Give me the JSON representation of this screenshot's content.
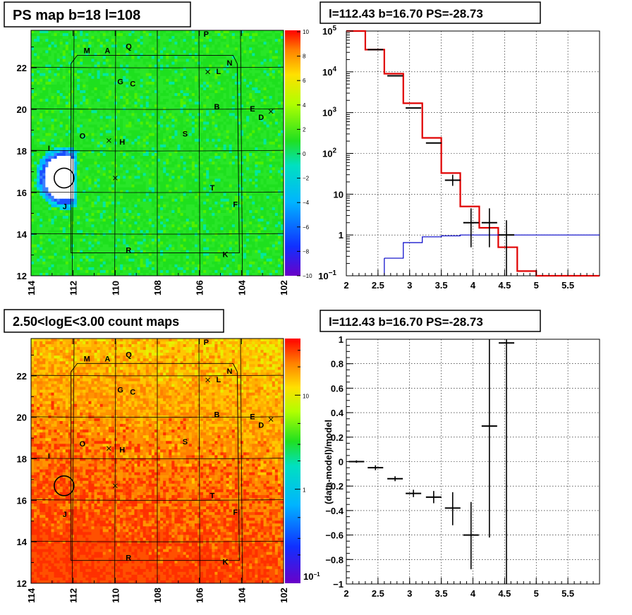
{
  "panels": {
    "tl": {
      "title": "PS map b=18 l=108",
      "x_ticks": [
        "114",
        "112",
        "110",
        "108",
        "106",
        "104",
        "102"
      ],
      "y_ticks": [
        "12",
        "14",
        "16",
        "18",
        "20",
        "22"
      ],
      "cb_ticks": [
        "10",
        "8",
        "6",
        "4",
        "2",
        "0",
        "−2",
        "−4",
        "−6",
        "−8",
        "−10"
      ]
    },
    "tr": {
      "title": "l=112.43 b=16.70 PS=-28.73",
      "x_ticks": [
        "2",
        "2.5",
        "3",
        "3.5",
        "4",
        "4.5",
        "5",
        "5.5"
      ]
    },
    "bl": {
      "title": "2.50<logE<3.00 count maps",
      "x_ticks": [
        "114",
        "112",
        "110",
        "108",
        "106",
        "104",
        "102"
      ],
      "y_ticks": [
        "12",
        "14",
        "16",
        "18",
        "20",
        "22"
      ],
      "cb_ticks": [
        "10",
        "1"
      ],
      "cb_small": "10",
      "cb_small_exp": "−1"
    },
    "br": {
      "title": "l=112.43 b=16.70 PS=-28.73",
      "ylabel": "(data-model)/model",
      "x_ticks": [
        "2",
        "2.5",
        "3",
        "3.5",
        "4",
        "4.5",
        "5",
        "5.5"
      ],
      "y_ticks": [
        "−1",
        "−0.8",
        "−0.6",
        "−0.4",
        "−0.2",
        "0",
        "0.2",
        "0.4",
        "0.6",
        "0.8",
        "1"
      ]
    }
  },
  "sky_labels": [
    {
      "t": "P",
      "l": 105.8,
      "b": 23.5
    },
    {
      "t": "M",
      "l": 111.5,
      "b": 22.7
    },
    {
      "t": "A",
      "l": 110.5,
      "b": 22.7
    },
    {
      "t": "Q",
      "l": 109.5,
      "b": 22.9
    },
    {
      "t": "L",
      "l": 105.2,
      "b": 21.7
    },
    {
      "t": "N",
      "l": 104.7,
      "b": 22.1
    },
    {
      "t": "G",
      "l": 109.9,
      "b": 21.2
    },
    {
      "t": "C",
      "l": 109.3,
      "b": 21.1
    },
    {
      "t": "B",
      "l": 105.3,
      "b": 20.0
    },
    {
      "t": "E",
      "l": 103.6,
      "b": 19.9
    },
    {
      "t": "D",
      "l": 103.2,
      "b": 19.5
    },
    {
      "t": "O",
      "l": 111.7,
      "b": 18.6
    },
    {
      "t": "H",
      "l": 109.8,
      "b": 18.3
    },
    {
      "t": "S",
      "l": 106.8,
      "b": 18.7
    },
    {
      "t": "I",
      "l": 113.2,
      "b": 18.0
    },
    {
      "t": "T",
      "l": 105.5,
      "b": 16.1
    },
    {
      "t": "F",
      "l": 104.4,
      "b": 15.3
    },
    {
      "t": "J",
      "l": 112.5,
      "b": 15.2
    },
    {
      "t": "R",
      "l": 109.5,
      "b": 13.1
    },
    {
      "t": "K",
      "l": 104.9,
      "b": 12.9
    }
  ],
  "sky_crosses": [
    {
      "l": 105.6,
      "b": 21.8
    },
    {
      "l": 102.6,
      "b": 19.9
    },
    {
      "l": 110.3,
      "b": 18.5
    },
    {
      "l": 110.0,
      "b": 16.7
    }
  ],
  "chart_data": [
    {
      "type": "heatmap",
      "title": "PS map b=18 l=108",
      "xlim": [
        114,
        102
      ],
      "ylim": [
        12,
        23.8
      ],
      "zlim": [
        -10,
        10
      ],
      "background_value": 0.5,
      "source": {
        "l": 112.43,
        "b": 16.7,
        "value": -10
      }
    },
    {
      "type": "line",
      "title": "l=112.43 b=16.70 PS=-28.73",
      "xlim": [
        2,
        6
      ],
      "ylim": [
        0.1,
        100000
      ],
      "log_y": true,
      "series": [
        {
          "kind": "step",
          "color": "#e00000",
          "bins": [
            [
              2.0,
              2.3,
              100000
            ],
            [
              2.3,
              2.6,
              35000
            ],
            [
              2.6,
              2.9,
              9000
            ],
            [
              2.9,
              3.2,
              1700
            ],
            [
              3.2,
              3.5,
              240
            ],
            [
              3.5,
              3.8,
              33
            ],
            [
              3.8,
              4.1,
              5
            ],
            [
              4.1,
              4.4,
              1.5
            ],
            [
              4.4,
              4.7,
              0.5
            ],
            [
              4.7,
              5.0,
              0.13
            ],
            [
              5.0,
              6.0,
              0.1
            ]
          ]
        },
        {
          "kind": "step",
          "color": "#0000c8",
          "bins": [
            [
              2.6,
              2.9,
              0.27
            ],
            [
              2.9,
              3.2,
              0.65
            ],
            [
              3.2,
              3.5,
              0.9
            ],
            [
              3.5,
              3.8,
              0.95
            ],
            [
              3.8,
              6.0,
              1.0
            ]
          ]
        },
        {
          "kind": "errorbars",
          "color": "#000",
          "points": [
            [
              2.46,
              35000,
              null,
              null
            ],
            [
              2.77,
              8000,
              null,
              null
            ],
            [
              3.06,
              1300,
              null,
              null
            ],
            [
              3.38,
              180,
              null,
              null
            ],
            [
              3.68,
              22,
              16,
              30
            ],
            [
              3.97,
              2,
              0.5,
              4.5
            ],
            [
              4.26,
              2,
              0.5,
              4.5
            ],
            [
              4.53,
              1,
              0.1,
              2.3
            ]
          ]
        }
      ]
    },
    {
      "type": "heatmap",
      "title": "2.50<logE<3.00 count maps",
      "xlim": [
        114,
        102
      ],
      "ylim": [
        12,
        23.8
      ],
      "zlim": [
        0.1,
        40
      ],
      "log_z": true,
      "source": {
        "l": 112.43,
        "b": 16.7
      }
    },
    {
      "type": "scatter",
      "title": "l=112.43 b=16.70 PS=-28.73",
      "ylabel": "(data-model)/model",
      "xlim": [
        2,
        6
      ],
      "ylim": [
        -1,
        1
      ],
      "points": [
        [
          2.16,
          0.0,
          -0.01,
          0.01
        ],
        [
          2.46,
          -0.05,
          -0.07,
          -0.03
        ],
        [
          2.77,
          -0.14,
          -0.16,
          -0.12
        ],
        [
          3.06,
          -0.26,
          -0.29,
          -0.23
        ],
        [
          3.38,
          -0.29,
          -0.34,
          -0.24
        ],
        [
          3.68,
          -0.38,
          -0.52,
          -0.25
        ],
        [
          3.97,
          -0.6,
          -0.88,
          -0.33
        ],
        [
          4.26,
          0.29,
          -0.62,
          1.0
        ],
        [
          4.53,
          0.97,
          -1.0,
          1.0
        ]
      ]
    }
  ]
}
